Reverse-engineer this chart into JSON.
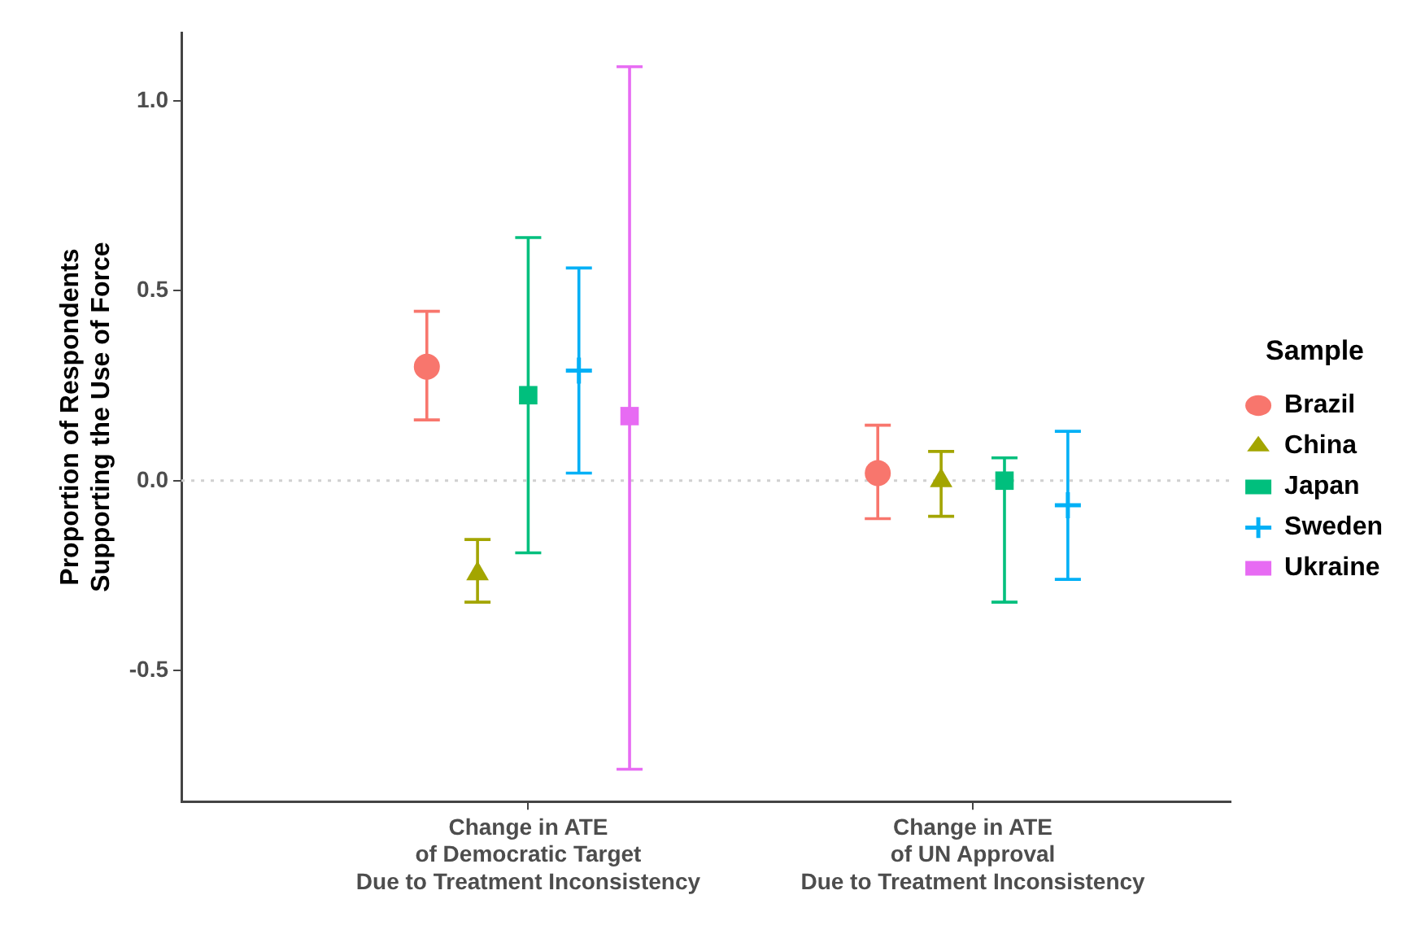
{
  "chart_data": {
    "type": "scatter",
    "xlabel": null,
    "ylabel": "Proportion of Respondents\nSupporting the Use of Force",
    "legend_title": "Sample",
    "legend": "right",
    "grid": false,
    "categories": [
      "Change in ATE\nof Democratic Target\nDue to Treatment Inconsistency",
      "Change in ATE\nof UN Approval\nDue to Treatment Inconsistency"
    ],
    "ylim": [
      -0.845,
      1.18
    ],
    "yticks": [
      {
        "value": -0.5,
        "label": "-0.5"
      },
      {
        "value": 0,
        "label": "0.0"
      },
      0.5,
      {
        "value": 1,
        "label": "1.0"
      }
    ],
    "ref_lines": [
      {
        "axis": "y",
        "value": 0,
        "color": "#d0d0d0",
        "line_style": "dotted"
      }
    ],
    "series": [
      {
        "name": "Brazil",
        "color": "#f8766d",
        "marker": "circle",
        "values": [
          0.3,
          0.02
        ],
        "errors": [
          [
            0.16,
            0.446
          ],
          [
            -0.1,
            0.146
          ]
        ]
      },
      {
        "name": "China",
        "color": "#a3a500",
        "marker": "triangle",
        "values": [
          -0.245,
          0.0
        ],
        "errors": [
          [
            -0.32,
            -0.155
          ],
          [
            -0.094,
            0.077
          ]
        ]
      },
      {
        "name": "Japan",
        "color": "#00bf7d",
        "marker": "square",
        "values": [
          0.225,
          0.0
        ],
        "errors": [
          [
            -0.19,
            0.64
          ],
          [
            -0.32,
            0.06
          ]
        ]
      },
      {
        "name": "Sweden",
        "color": "#00b0f6",
        "marker": "cross",
        "values": [
          0.29,
          -0.065
        ],
        "errors": [
          [
            0.02,
            0.56
          ],
          [
            -0.26,
            0.13
          ]
        ]
      },
      {
        "name": "Ukraine",
        "color": "#e76bf3",
        "marker": "square",
        "values": [
          0.17,
          null
        ],
        "errors": [
          [
            -0.76,
            1.09
          ],
          null
        ]
      }
    ]
  }
}
